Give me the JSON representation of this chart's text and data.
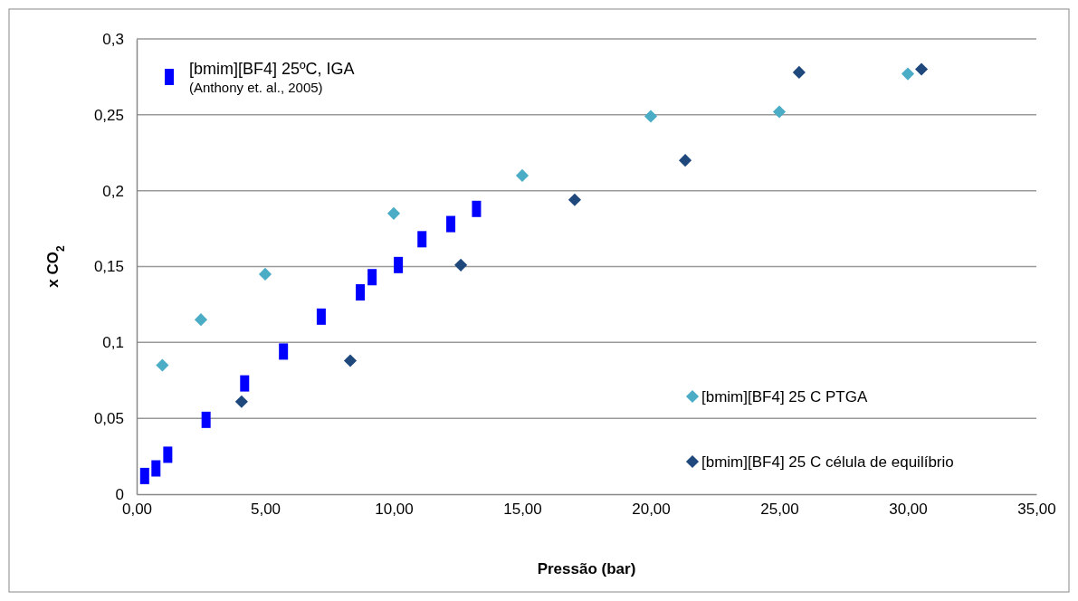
{
  "chart_data": {
    "type": "scatter",
    "xlabel": "Pressão (bar)",
    "ylabel": "x CO$_{2}$",
    "xlim": [
      0,
      35
    ],
    "ylim": [
      0,
      0.3
    ],
    "xticks": [
      {
        "value": 0,
        "label": "0,00"
      },
      {
        "value": 5,
        "label": "5,00"
      },
      {
        "value": 10,
        "label": "10,00"
      },
      {
        "value": 15,
        "label": "15,00"
      },
      {
        "value": 20,
        "label": "20,00"
      },
      {
        "value": 25,
        "label": "25,00"
      },
      {
        "value": 30,
        "label": "30,00"
      },
      {
        "value": 35,
        "label": "35,00"
      }
    ],
    "yticks": [
      0,
      {
        "value": 0.05,
        "label": "0,05"
      },
      {
        "value": 0.1,
        "label": "0,1"
      },
      {
        "value": 0.15,
        "label": "0,15"
      },
      {
        "value": 0.2,
        "label": "0,2"
      },
      {
        "value": 0.25,
        "label": "0,25"
      },
      {
        "value": 0.3,
        "label": "0,3"
      }
    ],
    "grid": "y",
    "legend": "top left",
    "annotations": [
      "(Anthony et. al., 2005)"
    ],
    "series": [
      {
        "name": "[bmim][BF4] 25ºC, IGA",
        "color": "#0000ff",
        "marker": "square",
        "x": [
          0.31,
          0.75,
          1.21,
          2.7,
          4.2,
          5.71,
          7.18,
          8.7,
          9.16,
          10.18,
          11.1,
          12.22,
          13.22
        ],
        "values": [
          0.012,
          0.017,
          0.026,
          0.049,
          0.073,
          0.094,
          0.117,
          0.133,
          0.143,
          0.151,
          0.168,
          0.178,
          0.188
        ]
      },
      {
        "name": "[bmim][BF4] 25 C PTGA",
        "color": "#4bacc6",
        "marker": "diamond",
        "x": [
          1,
          2.5,
          5,
          10,
          15,
          20,
          25,
          30
        ],
        "values": [
          0.085,
          0.115,
          0.145,
          0.185,
          0.21,
          0.249,
          0.252,
          0.277
        ]
      },
      {
        "name": "[bmim][BF4] 25 C célula de equilíbrio",
        "color": "#1f497d",
        "marker": "diamond",
        "x": [
          4.08,
          8.31,
          12.61,
          17.04,
          21.34,
          25.77,
          30.53
        ],
        "values": [
          0.061,
          0.088,
          0.151,
          0.194,
          0.22,
          0.278,
          0.28
        ]
      }
    ]
  }
}
